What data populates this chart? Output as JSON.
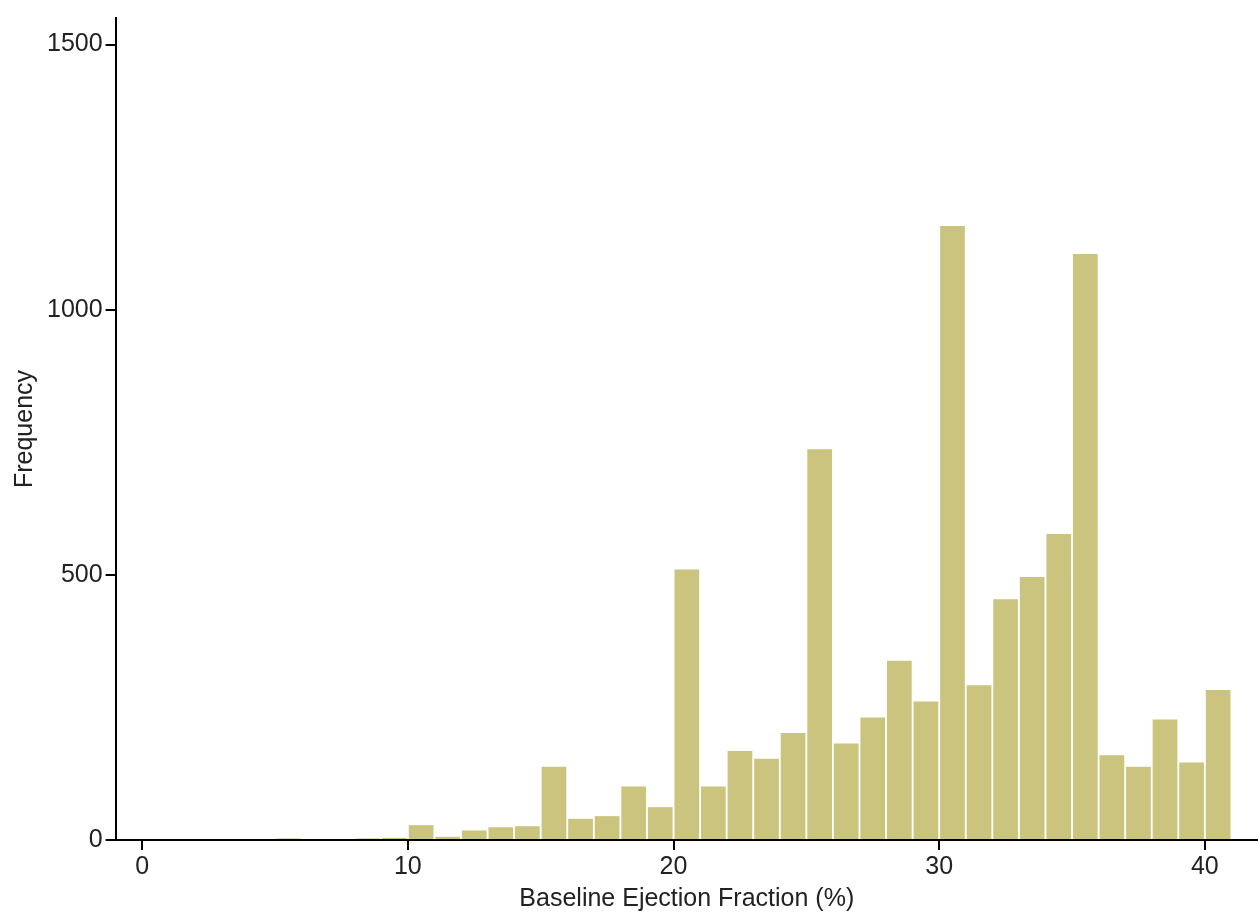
{
  "chart_data": {
    "type": "histogram",
    "xlabel": "Baseline Ejection Fraction (%)",
    "ylabel": "Frequency",
    "bins": [
      5,
      6,
      7,
      8,
      9,
      10,
      11,
      12,
      13,
      14,
      15,
      16,
      17,
      18,
      19,
      20,
      21,
      22,
      23,
      24,
      25,
      26,
      27,
      28,
      29,
      30,
      31,
      32,
      33,
      34,
      35,
      36,
      37,
      38,
      39,
      40,
      41
    ],
    "values": [
      3,
      0,
      0,
      3,
      4,
      28,
      6,
      18,
      24,
      26,
      138,
      40,
      45,
      101,
      62,
      510,
      101,
      168,
      153,
      202,
      737,
      182,
      231,
      338,
      261,
      1158,
      292,
      454,
      496,
      577,
      1105,
      160,
      138,
      227,
      146,
      283
    ],
    "color": "#cbc47e",
    "xlim": [
      -1,
      42
    ],
    "xticks": [
      0,
      10,
      20,
      30,
      40
    ],
    "ylim": [
      0,
      1550
    ],
    "yticks": [
      0,
      500,
      1000,
      1500
    ],
    "grid": false,
    "legend": false
  }
}
